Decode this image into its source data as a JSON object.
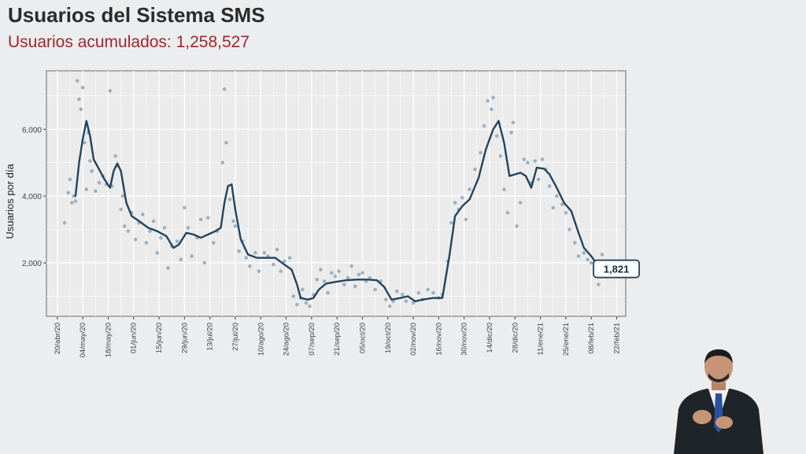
{
  "header": {
    "title": "Usuarios del Sistema SMS",
    "subtitle": "Usuarios acumulados: 1,258,527"
  },
  "colors": {
    "background": "#ecedee",
    "panel": "#ebebeb",
    "grid": "#ffffff",
    "line": "#23445f",
    "points": "#8fa7b7",
    "title": "#2b2b2b",
    "subtitle": "#a0262a"
  },
  "chart_data": {
    "type": "line",
    "ylabel": "Usuarios por día",
    "xlabel": "",
    "ylim": [
      400,
      7750
    ],
    "yticks": [
      2000,
      4000,
      6000
    ],
    "ytick_labels": [
      "2,000",
      "4,000",
      "6,000"
    ],
    "grid": true,
    "xdomain": [
      "2020-04-14",
      "2021-02-27"
    ],
    "xticks": [
      {
        "date": "2020-04-20",
        "label": "20/abr/20"
      },
      {
        "date": "2020-05-04",
        "label": "04/may/20"
      },
      {
        "date": "2020-05-18",
        "label": "18/may/20"
      },
      {
        "date": "2020-06-01",
        "label": "01/jun/20"
      },
      {
        "date": "2020-06-15",
        "label": "15/jun/20"
      },
      {
        "date": "2020-06-29",
        "label": "29/jun/20"
      },
      {
        "date": "2020-07-13",
        "label": "13/jul/20"
      },
      {
        "date": "2020-07-27",
        "label": "27/jul/20"
      },
      {
        "date": "2020-08-10",
        "label": "10/ago/20"
      },
      {
        "date": "2020-08-24",
        "label": "24/ago/20"
      },
      {
        "date": "2020-09-07",
        "label": "07/sep/20"
      },
      {
        "date": "2020-09-21",
        "label": "21/sep/20"
      },
      {
        "date": "2020-10-05",
        "label": "05/oct/20"
      },
      {
        "date": "2020-10-19",
        "label": "19/oct/20"
      },
      {
        "date": "2020-11-02",
        "label": "02/nov/20"
      },
      {
        "date": "2020-11-16",
        "label": "16/nov/20"
      },
      {
        "date": "2020-11-30",
        "label": "30/nov/20"
      },
      {
        "date": "2020-12-14",
        "label": "14/dic/20"
      },
      {
        "date": "2020-12-28",
        "label": "28/dic/20"
      },
      {
        "date": "2021-01-11",
        "label": "11/ene/21"
      },
      {
        "date": "2021-01-25",
        "label": "25/ene/21"
      },
      {
        "date": "2021-02-08",
        "label": "08/feb/21"
      },
      {
        "date": "2021-02-22",
        "label": "22/feb/21"
      }
    ],
    "series": [
      {
        "type": "line",
        "points": [
          [
            "2020-04-30",
            4000
          ],
          [
            "2020-05-02",
            5000
          ],
          [
            "2020-05-04",
            5700
          ],
          [
            "2020-05-06",
            6250
          ],
          [
            "2020-05-08",
            5800
          ],
          [
            "2020-05-10",
            5100
          ],
          [
            "2020-05-13",
            4800
          ],
          [
            "2020-05-16",
            4500
          ],
          [
            "2020-05-19",
            4250
          ],
          [
            "2020-05-21",
            4750
          ],
          [
            "2020-05-23",
            4980
          ],
          [
            "2020-05-25",
            4750
          ],
          [
            "2020-05-28",
            3800
          ],
          [
            "2020-05-31",
            3400
          ],
          [
            "2020-06-04",
            3250
          ],
          [
            "2020-06-09",
            3050
          ],
          [
            "2020-06-14",
            2950
          ],
          [
            "2020-06-19",
            2800
          ],
          [
            "2020-06-23",
            2450
          ],
          [
            "2020-06-26",
            2550
          ],
          [
            "2020-06-30",
            2900
          ],
          [
            "2020-07-04",
            2850
          ],
          [
            "2020-07-08",
            2750
          ],
          [
            "2020-07-12",
            2850
          ],
          [
            "2020-07-16",
            2950
          ],
          [
            "2020-07-19",
            3050
          ],
          [
            "2020-07-21",
            3800
          ],
          [
            "2020-07-23",
            4300
          ],
          [
            "2020-07-25",
            4350
          ],
          [
            "2020-07-27",
            3600
          ],
          [
            "2020-07-30",
            2700
          ],
          [
            "2020-08-03",
            2250
          ],
          [
            "2020-08-08",
            2150
          ],
          [
            "2020-08-13",
            2150
          ],
          [
            "2020-08-18",
            2150
          ],
          [
            "2020-08-23",
            1950
          ],
          [
            "2020-08-27",
            1800
          ],
          [
            "2020-08-30",
            1350
          ],
          [
            "2020-09-01",
            950
          ],
          [
            "2020-09-05",
            900
          ],
          [
            "2020-09-08",
            950
          ],
          [
            "2020-09-11",
            1200
          ],
          [
            "2020-09-15",
            1380
          ],
          [
            "2020-09-20",
            1430
          ],
          [
            "2020-09-26",
            1480
          ],
          [
            "2020-10-02",
            1500
          ],
          [
            "2020-10-08",
            1500
          ],
          [
            "2020-10-13",
            1480
          ],
          [
            "2020-10-17",
            1280
          ],
          [
            "2020-10-21",
            900
          ],
          [
            "2020-10-26",
            950
          ],
          [
            "2020-10-30",
            1000
          ],
          [
            "2020-11-03",
            850
          ],
          [
            "2020-11-07",
            900
          ],
          [
            "2020-11-13",
            950
          ],
          [
            "2020-11-18",
            950
          ],
          [
            "2020-11-22",
            2250
          ],
          [
            "2020-11-25",
            3400
          ],
          [
            "2020-11-29",
            3700
          ],
          [
            "2020-12-03",
            3900
          ],
          [
            "2020-12-08",
            4550
          ],
          [
            "2020-12-12",
            5400
          ],
          [
            "2020-12-16",
            6000
          ],
          [
            "2020-12-19",
            6250
          ],
          [
            "2020-12-22",
            5600
          ],
          [
            "2020-12-25",
            4600
          ],
          [
            "2020-12-28",
            4650
          ],
          [
            "2020-12-31",
            4700
          ],
          [
            "2021-01-03",
            4600
          ],
          [
            "2021-01-06",
            4250
          ],
          [
            "2021-01-09",
            4850
          ],
          [
            "2021-01-13",
            4820
          ],
          [
            "2021-01-16",
            4650
          ],
          [
            "2021-01-20",
            4250
          ],
          [
            "2021-01-24",
            3800
          ],
          [
            "2021-01-28",
            3550
          ],
          [
            "2021-02-01",
            2900
          ],
          [
            "2021-02-04",
            2450
          ],
          [
            "2021-02-08",
            2200
          ],
          [
            "2021-02-10",
            2050
          ]
        ]
      },
      {
        "type": "scatter",
        "points": [
          [
            "2020-04-24",
            3200
          ],
          [
            "2020-04-26",
            4100
          ],
          [
            "2020-04-27",
            4500
          ],
          [
            "2020-04-28",
            3800
          ],
          [
            "2020-04-29",
            4000
          ],
          [
            "2020-04-30",
            3850
          ],
          [
            "2020-05-01",
            7450
          ],
          [
            "2020-05-02",
            6900
          ],
          [
            "2020-05-03",
            6600
          ],
          [
            "2020-05-04",
            7250
          ],
          [
            "2020-05-05",
            5600
          ],
          [
            "2020-05-06",
            4200
          ],
          [
            "2020-05-07",
            5900
          ],
          [
            "2020-05-08",
            5050
          ],
          [
            "2020-05-09",
            4750
          ],
          [
            "2020-05-11",
            4150
          ],
          [
            "2020-05-13",
            4400
          ],
          [
            "2020-05-15",
            4600
          ],
          [
            "2020-05-17",
            4350
          ],
          [
            "2020-05-19",
            7150
          ],
          [
            "2020-05-20",
            4300
          ],
          [
            "2020-05-22",
            5200
          ],
          [
            "2020-05-23",
            4900
          ],
          [
            "2020-05-25",
            3600
          ],
          [
            "2020-05-26",
            4000
          ],
          [
            "2020-05-27",
            3100
          ],
          [
            "2020-05-29",
            2950
          ],
          [
            "2020-05-31",
            3500
          ],
          [
            "2020-06-02",
            2700
          ],
          [
            "2020-06-04",
            3200
          ],
          [
            "2020-06-06",
            3450
          ],
          [
            "2020-06-08",
            2600
          ],
          [
            "2020-06-10",
            2950
          ],
          [
            "2020-06-12",
            3250
          ],
          [
            "2020-06-14",
            2300
          ],
          [
            "2020-06-16",
            2750
          ],
          [
            "2020-06-18",
            3050
          ],
          [
            "2020-06-20",
            1850
          ],
          [
            "2020-06-22",
            2500
          ],
          [
            "2020-06-25",
            2650
          ],
          [
            "2020-06-27",
            2100
          ],
          [
            "2020-06-29",
            3650
          ],
          [
            "2020-07-01",
            3050
          ],
          [
            "2020-07-03",
            2200
          ],
          [
            "2020-07-06",
            2750
          ],
          [
            "2020-07-08",
            3300
          ],
          [
            "2020-07-10",
            2000
          ],
          [
            "2020-07-12",
            3350
          ],
          [
            "2020-07-15",
            2600
          ],
          [
            "2020-07-17",
            2950
          ],
          [
            "2020-07-20",
            5000
          ],
          [
            "2020-07-21",
            7200
          ],
          [
            "2020-07-22",
            5600
          ],
          [
            "2020-07-24",
            3900
          ],
          [
            "2020-07-26",
            3250
          ],
          [
            "2020-07-27",
            3100
          ],
          [
            "2020-07-29",
            2350
          ],
          [
            "2020-07-31",
            2650
          ],
          [
            "2020-08-02",
            2150
          ],
          [
            "2020-08-04",
            1900
          ],
          [
            "2020-08-07",
            2300
          ],
          [
            "2020-08-09",
            1750
          ],
          [
            "2020-08-12",
            2300
          ],
          [
            "2020-08-14",
            2200
          ],
          [
            "2020-08-17",
            1950
          ],
          [
            "2020-08-19",
            2400
          ],
          [
            "2020-08-21",
            1750
          ],
          [
            "2020-08-23",
            2050
          ],
          [
            "2020-08-26",
            2150
          ],
          [
            "2020-08-28",
            1000
          ],
          [
            "2020-08-30",
            750
          ],
          [
            "2020-09-01",
            950
          ],
          [
            "2020-09-02",
            1200
          ],
          [
            "2020-09-04",
            800
          ],
          [
            "2020-09-06",
            700
          ],
          [
            "2020-09-08",
            1050
          ],
          [
            "2020-09-10",
            1500
          ],
          [
            "2020-09-12",
            1800
          ],
          [
            "2020-09-14",
            1450
          ],
          [
            "2020-09-16",
            1100
          ],
          [
            "2020-09-18",
            1700
          ],
          [
            "2020-09-20",
            1600
          ],
          [
            "2020-09-22",
            1750
          ],
          [
            "2020-09-25",
            1350
          ],
          [
            "2020-09-27",
            1550
          ],
          [
            "2020-09-29",
            1900
          ],
          [
            "2020-10-01",
            1300
          ],
          [
            "2020-10-03",
            1650
          ],
          [
            "2020-10-05",
            1700
          ],
          [
            "2020-10-07",
            1450
          ],
          [
            "2020-10-09",
            1550
          ],
          [
            "2020-10-12",
            1200
          ],
          [
            "2020-10-15",
            1450
          ],
          [
            "2020-10-18",
            900
          ],
          [
            "2020-10-20",
            700
          ],
          [
            "2020-10-22",
            850
          ],
          [
            "2020-10-24",
            1150
          ],
          [
            "2020-10-27",
            1050
          ],
          [
            "2020-10-29",
            850
          ],
          [
            "2020-11-02",
            800
          ],
          [
            "2020-11-05",
            1100
          ],
          [
            "2020-11-07",
            900
          ],
          [
            "2020-11-10",
            1200
          ],
          [
            "2020-11-13",
            1100
          ],
          [
            "2020-11-16",
            950
          ],
          [
            "2020-11-18",
            1050
          ],
          [
            "2020-11-21",
            2050
          ],
          [
            "2020-11-23",
            3200
          ],
          [
            "2020-11-25",
            3800
          ],
          [
            "2020-11-27",
            3600
          ],
          [
            "2020-11-29",
            3950
          ],
          [
            "2020-12-01",
            3300
          ],
          [
            "2020-12-03",
            4200
          ],
          [
            "2020-12-06",
            4800
          ],
          [
            "2020-12-09",
            5300
          ],
          [
            "2020-12-11",
            6100
          ],
          [
            "2020-12-13",
            6850
          ],
          [
            "2020-12-15",
            6600
          ],
          [
            "2020-12-16",
            6950
          ],
          [
            "2020-12-18",
            5800
          ],
          [
            "2020-12-20",
            5200
          ],
          [
            "2020-12-22",
            4200
          ],
          [
            "2020-12-24",
            3500
          ],
          [
            "2020-12-26",
            5900
          ],
          [
            "2020-12-27",
            6200
          ],
          [
            "2020-12-29",
            3100
          ],
          [
            "2020-12-31",
            3800
          ],
          [
            "2021-01-02",
            5100
          ],
          [
            "2021-01-04",
            5000
          ],
          [
            "2021-01-06",
            4400
          ],
          [
            "2021-01-08",
            5050
          ],
          [
            "2021-01-10",
            4500
          ],
          [
            "2021-01-12",
            5100
          ],
          [
            "2021-01-14",
            4800
          ],
          [
            "2021-01-16",
            4300
          ],
          [
            "2021-01-18",
            3650
          ],
          [
            "2021-01-20",
            4000
          ],
          [
            "2021-01-23",
            3750
          ],
          [
            "2021-01-25",
            3500
          ],
          [
            "2021-01-27",
            3000
          ],
          [
            "2021-01-30",
            2600
          ],
          [
            "2021-02-01",
            2200
          ],
          [
            "2021-02-04",
            2300
          ],
          [
            "2021-02-06",
            2100
          ],
          [
            "2021-02-08",
            2000
          ],
          [
            "2021-02-10",
            1650
          ],
          [
            "2021-02-12",
            1350
          ],
          [
            "2021-02-14",
            2250
          ]
        ]
      }
    ],
    "annotation": {
      "date": "2021-02-11",
      "value": 1821,
      "label": "1,821"
    }
  }
}
